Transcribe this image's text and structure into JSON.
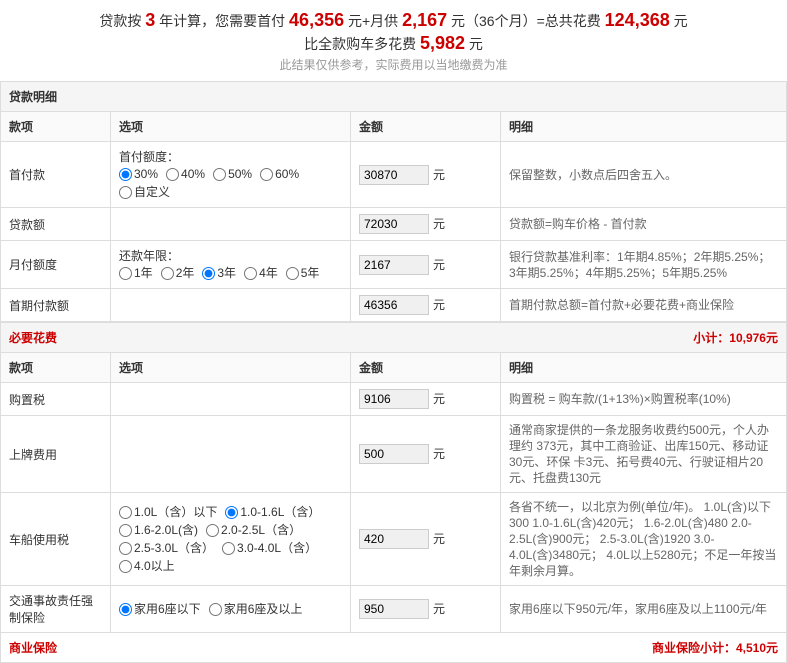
{
  "header": {
    "line1_prefix": "贷款按",
    "years": "3",
    "line1_mid1": "年计算，您需要首付",
    "down_payment": "46,356",
    "line1_mid2": "元+月供",
    "monthly": "2,167",
    "line1_mid3": "元（36个月）=总共花费",
    "total": "124,368",
    "line1_suffix": "元",
    "line2_prefix": "比全款购车多花费",
    "extra": "5,982",
    "line2_suffix": "元",
    "note": "此结果仅供参考，实际费用以当地缴费为准"
  },
  "sections": {
    "loan": {
      "title": "贷款明细"
    },
    "required": {
      "title": "必要花费",
      "subtotal_label": "小计：10,976元"
    },
    "insurance": {
      "title": "商业保险",
      "subtotal_label": "商业保险小计：4,510元"
    }
  },
  "columns": {
    "item": "款项",
    "option": "选项",
    "amount": "金额",
    "detail": "明细"
  },
  "unit": "元",
  "loan_rows": [
    {
      "item": "首付款",
      "option_label": "首付额度：",
      "options": [
        "30%",
        "40%",
        "50%",
        "60%",
        "自定义"
      ],
      "selected": 0,
      "amount": "30870",
      "detail": "保留整数，小数点后四舍五入。"
    },
    {
      "item": "贷款额",
      "option_label": "",
      "options": [],
      "selected": -1,
      "amount": "72030",
      "detail": "贷款额=购车价格 - 首付款"
    },
    {
      "item": "月付额度",
      "option_label": "还款年限：",
      "options": [
        "1年",
        "2年",
        "3年",
        "4年",
        "5年"
      ],
      "selected": 2,
      "amount": "2167",
      "detail": "银行贷款基准利率：1年期4.85%；2年期5.25%；\n3年期5.25%；4年期5.25%；5年期5.25%"
    },
    {
      "item": "首期付款额",
      "option_label": "",
      "options": [],
      "selected": -1,
      "amount": "46356",
      "detail": "首期付款总额=首付款+必要花费+商业保险"
    }
  ],
  "required_rows": [
    {
      "item": "购置税",
      "option_label": "",
      "options": [],
      "selected": -1,
      "amount": "9106",
      "detail": "购置税 = 购车款/(1+13%)×购置税率(10%)"
    },
    {
      "item": "上牌费用",
      "option_label": "",
      "options": [],
      "selected": -1,
      "amount": "500",
      "detail": "通常商家提供的一条龙服务收费约500元，个人办理约 373元，其中工商验证、出库150元、移动证30元、环保 卡3元、拓号费40元、行驶证相片20元、托盘费130元"
    },
    {
      "item": "车船使用税",
      "option_label": "",
      "options": [
        "1.0L（含）以下",
        "1.0-1.6L（含）",
        "1.6-2.0L(含)",
        "2.0-2.5L（含）",
        "2.5-3.0L（含）",
        "3.0-4.0L（含）",
        "4.0以上"
      ],
      "selected": 1,
      "amount": "420",
      "detail": "各省不统一，以北京为例(单位/年)。\n1.0L(含)以下300 1.0-1.6L(含)420元；\n1.6-2.0L(含)480 2.0-2.5L(含)900元；\n2.5-3.0L(含)1920 3.0-4.0L(含)3480元；\n4.0L以上5280元；不足一年按当年剩余月算。"
    },
    {
      "item": "交通事故责任强制保险",
      "option_label": "",
      "options": [
        "家用6座以下",
        "家用6座及以上"
      ],
      "selected": 0,
      "amount": "950",
      "detail": "家用6座以下950元/年，家用6座及以上1100元/年"
    }
  ]
}
